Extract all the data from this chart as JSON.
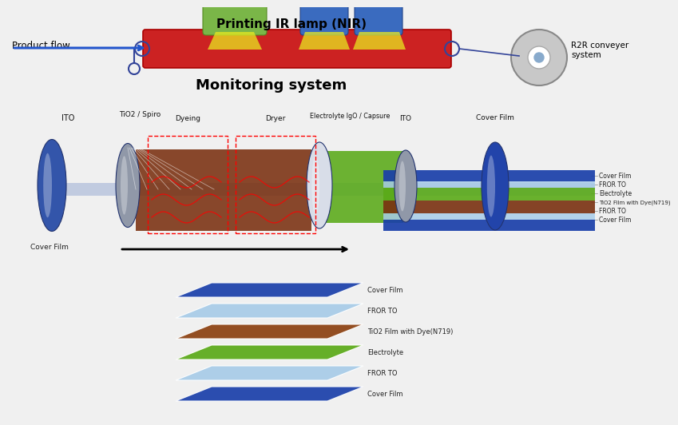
{
  "title_top": "Printing IR lamp (NIR)",
  "label_product_flow": "Product flow",
  "label_r2r": "R2R conveyer\nsystem",
  "label_monitoring": "Monitoring system",
  "lamp_green_color": "#7ab648",
  "lamp_blue_color": "#3a6bbf",
  "belt_color": "#cc2222",
  "arrow_color": "#2255cc",
  "bg_color": "#f0f0f0",
  "conveyer_color": "#c8c8c8",
  "roller_blue": "#3355aa",
  "roller_gray": "#b0b8c8",
  "roller_white": "#e8eef4",
  "brown_color": "#7a3010",
  "green_color": "#5aaa18",
  "layer_blue": "#1a3faa",
  "layer_lightblue": "#a8cce8",
  "layer_green": "#5aaa18",
  "layer_brown": "#8b4010",
  "labels_middle": [
    "ITO",
    "TiO2 / Spiro",
    "Dyeing",
    "Dryer",
    "Electrolyte IgO / Capsure",
    "ITO",
    "Cover Film"
  ],
  "layer_labels_bottom": [
    "Cover Film",
    "FROR TO",
    "Electrolyte",
    "TiO2 Film with Dye(N719)",
    "FROR TO",
    "Cover Film"
  ],
  "side_labels": [
    "Cover Film",
    "FROR TO",
    "Electrolyte",
    "TiO2 Film with Dye(N719)",
    "FROR TO",
    "Cover Film"
  ]
}
